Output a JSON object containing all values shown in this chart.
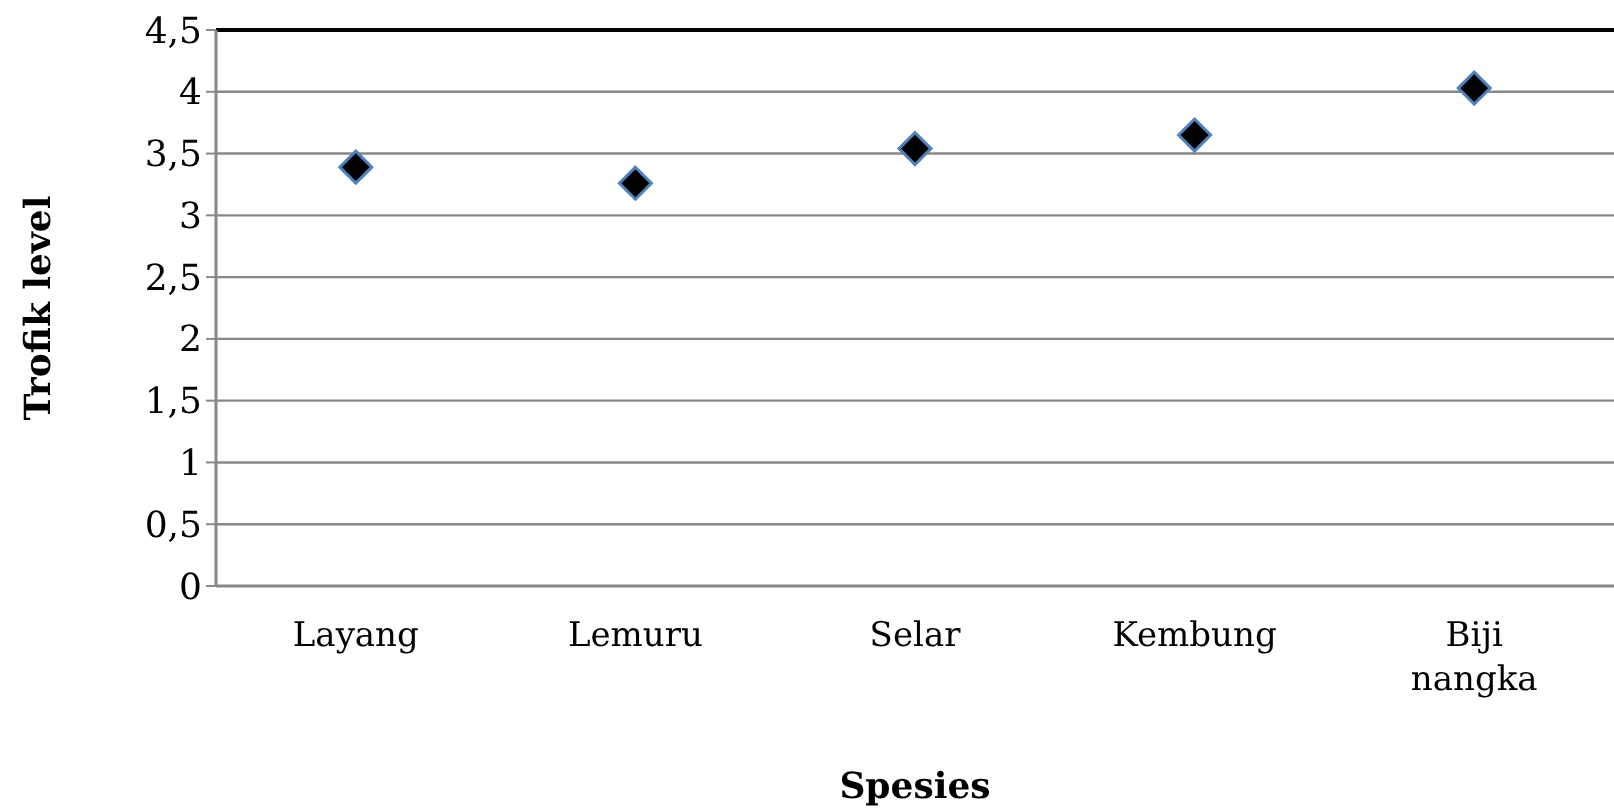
{
  "chart_data": {
    "type": "scatter",
    "xlabel": "Spesies",
    "ylabel": "Trofik level",
    "categories": [
      "Layang",
      "Lemuru",
      "Selar",
      "Kembung",
      "Biji nangka"
    ],
    "series": [
      {
        "color": "#000000",
        "values": [
          3.39,
          3.26,
          3.54,
          3.65,
          4.03
        ]
      }
    ],
    "ylim": [
      0,
      4.5
    ],
    "yticks": [
      0,
      {
        "value": 0.5,
        "label": "0,5"
      },
      1,
      {
        "value": 1.5,
        "label": "1,5"
      },
      2,
      {
        "value": 2.5,
        "label": "2,5"
      },
      3,
      {
        "value": 3.5,
        "label": "3,5"
      },
      4,
      {
        "value": 4.5,
        "label": "4,5"
      }
    ],
    "grid": "y",
    "marker": "diamond"
  }
}
